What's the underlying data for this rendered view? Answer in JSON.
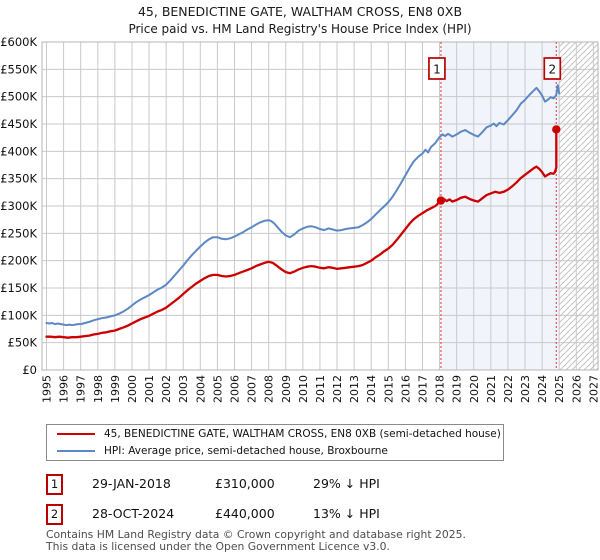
{
  "header": {
    "line1": "45, BENEDICTINE GATE, WALTHAM CROSS, EN8 0XB",
    "line2": "Price paid vs. HM Land Registry's House Price Index (HPI)"
  },
  "legend": {
    "items": [
      {
        "label": "45, BENEDICTINE GATE, WALTHAM CROSS, EN8 0XB (semi-detached house)",
        "color": "#cc0000"
      },
      {
        "label": "HPI: Average price, semi-detached house, Broxbourne",
        "color": "#5c88c5"
      }
    ]
  },
  "annotations": [
    {
      "num": "1",
      "date": "29-JAN-2018",
      "price": "£310,000",
      "hpi": "29% ↓ HPI"
    },
    {
      "num": "2",
      "date": "28-OCT-2024",
      "price": "£440,000",
      "hpi": "13% ↓ HPI"
    }
  ],
  "footer": {
    "line1": "Contains HM Land Registry data © Crown copyright and database right 2025.",
    "line2": "This data is licensed under the Open Government Licence v3.0."
  },
  "chart_data": {
    "type": "line",
    "title": "45, BENEDICTINE GATE, WALTHAM CROSS, EN8 0XB — Price paid vs. HPI",
    "xlabel": "",
    "ylabel": "",
    "ylim": [
      0,
      600
    ],
    "xlim": [
      1994.7,
      2027.3
    ],
    "grid": true,
    "legend_position": "bottom",
    "x_ticks": [
      1995,
      1996,
      1997,
      1998,
      1999,
      2000,
      2001,
      2002,
      2003,
      2004,
      2005,
      2006,
      2007,
      2008,
      2009,
      2010,
      2011,
      2012,
      2013,
      2014,
      2015,
      2016,
      2017,
      2018,
      2019,
      2020,
      2021,
      2022,
      2023,
      2024,
      2025,
      2026,
      2027
    ],
    "y_ticks": [
      {
        "label": "£0",
        "value": 0
      },
      {
        "label": "£50K",
        "value": 50
      },
      {
        "label": "£100K",
        "value": 100
      },
      {
        "label": "£150K",
        "value": 150
      },
      {
        "label": "£200K",
        "value": 200
      },
      {
        "label": "£250K",
        "value": 250
      },
      {
        "label": "£300K",
        "value": 300
      },
      {
        "label": "£350K",
        "value": 350
      },
      {
        "label": "£400K",
        "value": 400
      },
      {
        "label": "£450K",
        "value": 450
      },
      {
        "label": "£500K",
        "value": 500
      },
      {
        "label": "£550K",
        "value": 550
      },
      {
        "label": "£600K",
        "value": 600
      }
    ],
    "units": "GBP thousands",
    "shade": {
      "from": 2018.08,
      "to": 2025.0,
      "color": "#f2f4fb"
    },
    "hatch": {
      "from": 2025.0,
      "to": 2027.3
    },
    "colors": {
      "grid": "#c9c9c9",
      "border": "#b5b5b5",
      "dashed": "#e05555",
      "hatch_line": "#c4c4c4",
      "marker_box_border": "#bb0000",
      "price_line": "#cc0000",
      "hpi_line": "#5c88c5"
    },
    "sales": [
      {
        "n": "1",
        "x": 2018.08,
        "y": 310,
        "date": "29-JAN-2018",
        "price_gbp": 310000,
        "pct_vs_hpi": "29% below HPI"
      },
      {
        "n": "2",
        "x": 2024.83,
        "y": 440,
        "date": "28-OCT-2024",
        "price_gbp": 440000,
        "pct_vs_hpi": "13% below HPI"
      }
    ],
    "series": [
      {
        "name": "45, BENEDICTINE GATE, WALTHAM CROSS, EN8 0XB (semi-detached house)",
        "color": "#cc0000",
        "width": 2.3,
        "points": [
          [
            1995.0,
            61
          ],
          [
            1995.25,
            61
          ],
          [
            1995.5,
            60
          ],
          [
            1995.75,
            61
          ],
          [
            1996.0,
            60
          ],
          [
            1996.25,
            59
          ],
          [
            1996.5,
            60
          ],
          [
            1996.75,
            60
          ],
          [
            1997.0,
            61
          ],
          [
            1997.25,
            62
          ],
          [
            1997.5,
            63
          ],
          [
            1997.75,
            65
          ],
          [
            1998.0,
            66
          ],
          [
            1998.25,
            68
          ],
          [
            1998.5,
            69
          ],
          [
            1998.75,
            71
          ],
          [
            1999.0,
            72
          ],
          [
            1999.25,
            75
          ],
          [
            1999.5,
            78
          ],
          [
            1999.75,
            81
          ],
          [
            2000.0,
            85
          ],
          [
            2000.25,
            89
          ],
          [
            2000.5,
            93
          ],
          [
            2000.75,
            96
          ],
          [
            2001.0,
            99
          ],
          [
            2001.25,
            103
          ],
          [
            2001.5,
            107
          ],
          [
            2001.75,
            110
          ],
          [
            2002.0,
            114
          ],
          [
            2002.25,
            120
          ],
          [
            2002.5,
            126
          ],
          [
            2002.75,
            132
          ],
          [
            2003.0,
            139
          ],
          [
            2003.25,
            146
          ],
          [
            2003.5,
            152
          ],
          [
            2003.75,
            158
          ],
          [
            2004.0,
            163
          ],
          [
            2004.25,
            168
          ],
          [
            2004.5,
            172
          ],
          [
            2004.75,
            174
          ],
          [
            2005.0,
            174
          ],
          [
            2005.25,
            172
          ],
          [
            2005.5,
            171
          ],
          [
            2005.75,
            172
          ],
          [
            2006.0,
            174
          ],
          [
            2006.25,
            177
          ],
          [
            2006.5,
            180
          ],
          [
            2006.75,
            183
          ],
          [
            2007.0,
            186
          ],
          [
            2007.25,
            190
          ],
          [
            2007.5,
            193
          ],
          [
            2007.75,
            196
          ],
          [
            2008.0,
            198
          ],
          [
            2008.25,
            196
          ],
          [
            2008.5,
            190
          ],
          [
            2008.75,
            184
          ],
          [
            2009.0,
            179
          ],
          [
            2009.25,
            177
          ],
          [
            2009.5,
            180
          ],
          [
            2009.75,
            184
          ],
          [
            2010.0,
            187
          ],
          [
            2010.25,
            189
          ],
          [
            2010.5,
            190
          ],
          [
            2010.75,
            189
          ],
          [
            2011.0,
            187
          ],
          [
            2011.25,
            186
          ],
          [
            2011.5,
            188
          ],
          [
            2011.75,
            187
          ],
          [
            2012.0,
            185
          ],
          [
            2012.25,
            186
          ],
          [
            2012.5,
            187
          ],
          [
            2012.75,
            188
          ],
          [
            2013.0,
            189
          ],
          [
            2013.25,
            190
          ],
          [
            2013.5,
            192
          ],
          [
            2013.75,
            196
          ],
          [
            2014.0,
            200
          ],
          [
            2014.25,
            206
          ],
          [
            2014.5,
            211
          ],
          [
            2014.75,
            217
          ],
          [
            2015.0,
            222
          ],
          [
            2015.25,
            229
          ],
          [
            2015.5,
            238
          ],
          [
            2015.75,
            248
          ],
          [
            2016.0,
            258
          ],
          [
            2016.25,
            268
          ],
          [
            2016.5,
            276
          ],
          [
            2016.75,
            282
          ],
          [
            2017.0,
            287
          ],
          [
            2017.25,
            292
          ],
          [
            2017.5,
            296
          ],
          [
            2017.75,
            300
          ],
          [
            2017.83,
            302
          ],
          [
            2017.94,
            306
          ],
          [
            2018.08,
            310
          ],
          [
            2018.25,
            313
          ],
          [
            2018.42,
            309
          ],
          [
            2018.58,
            312
          ],
          [
            2018.75,
            308
          ],
          [
            2019.0,
            311
          ],
          [
            2019.25,
            315
          ],
          [
            2019.5,
            317
          ],
          [
            2019.75,
            313
          ],
          [
            2020.0,
            310
          ],
          [
            2020.25,
            308
          ],
          [
            2020.5,
            314
          ],
          [
            2020.75,
            320
          ],
          [
            2021.0,
            323
          ],
          [
            2021.25,
            326
          ],
          [
            2021.5,
            324
          ],
          [
            2021.75,
            326
          ],
          [
            2022.0,
            330
          ],
          [
            2022.25,
            336
          ],
          [
            2022.5,
            343
          ],
          [
            2022.75,
            351
          ],
          [
            2023.0,
            357
          ],
          [
            2023.25,
            363
          ],
          [
            2023.5,
            369
          ],
          [
            2023.67,
            372
          ],
          [
            2023.83,
            368
          ],
          [
            2024.0,
            362
          ],
          [
            2024.17,
            354
          ],
          [
            2024.33,
            357
          ],
          [
            2024.5,
            360
          ],
          [
            2024.67,
            359
          ],
          [
            2024.75,
            362
          ],
          [
            2024.83,
            370
          ],
          [
            2024.83,
            440
          ]
        ]
      },
      {
        "name": "HPI: Average price, semi-detached house, Broxbourne",
        "color": "#5c88c5",
        "width": 2,
        "points": [
          [
            1995.0,
            86
          ],
          [
            1995.17,
            85
          ],
          [
            1995.33,
            86
          ],
          [
            1995.5,
            84
          ],
          [
            1995.67,
            85
          ],
          [
            1995.83,
            84
          ],
          [
            1996.0,
            83
          ],
          [
            1996.17,
            82
          ],
          [
            1996.33,
            83
          ],
          [
            1996.5,
            82
          ],
          [
            1996.67,
            83
          ],
          [
            1996.83,
            84
          ],
          [
            1997.0,
            84
          ],
          [
            1997.25,
            86
          ],
          [
            1997.5,
            88
          ],
          [
            1997.75,
            91
          ],
          [
            1998.0,
            93
          ],
          [
            1998.25,
            95
          ],
          [
            1998.5,
            96
          ],
          [
            1998.75,
            98
          ],
          [
            1999.0,
            100
          ],
          [
            1999.25,
            103
          ],
          [
            1999.5,
            107
          ],
          [
            1999.75,
            112
          ],
          [
            2000.0,
            118
          ],
          [
            2000.25,
            124
          ],
          [
            2000.5,
            129
          ],
          [
            2000.75,
            133
          ],
          [
            2001.0,
            137
          ],
          [
            2001.25,
            142
          ],
          [
            2001.5,
            147
          ],
          [
            2001.75,
            151
          ],
          [
            2002.0,
            156
          ],
          [
            2002.25,
            164
          ],
          [
            2002.5,
            173
          ],
          [
            2002.75,
            182
          ],
          [
            2003.0,
            191
          ],
          [
            2003.25,
            201
          ],
          [
            2003.5,
            210
          ],
          [
            2003.75,
            218
          ],
          [
            2004.0,
            226
          ],
          [
            2004.25,
            233
          ],
          [
            2004.5,
            239
          ],
          [
            2004.75,
            243
          ],
          [
            2005.0,
            243
          ],
          [
            2005.25,
            240
          ],
          [
            2005.5,
            239
          ],
          [
            2005.75,
            241
          ],
          [
            2006.0,
            244
          ],
          [
            2006.25,
            248
          ],
          [
            2006.5,
            252
          ],
          [
            2006.75,
            257
          ],
          [
            2007.0,
            261
          ],
          [
            2007.25,
            266
          ],
          [
            2007.5,
            270
          ],
          [
            2007.75,
            273
          ],
          [
            2008.0,
            274
          ],
          [
            2008.17,
            272
          ],
          [
            2008.33,
            268
          ],
          [
            2008.5,
            262
          ],
          [
            2008.75,
            253
          ],
          [
            2009.0,
            246
          ],
          [
            2009.25,
            243
          ],
          [
            2009.5,
            248
          ],
          [
            2009.75,
            255
          ],
          [
            2010.0,
            259
          ],
          [
            2010.25,
            262
          ],
          [
            2010.5,
            263
          ],
          [
            2010.75,
            261
          ],
          [
            2011.0,
            258
          ],
          [
            2011.25,
            256
          ],
          [
            2011.5,
            259
          ],
          [
            2011.75,
            257
          ],
          [
            2012.0,
            255
          ],
          [
            2012.25,
            256
          ],
          [
            2012.5,
            258
          ],
          [
            2012.75,
            259
          ],
          [
            2013.0,
            260
          ],
          [
            2013.25,
            261
          ],
          [
            2013.5,
            265
          ],
          [
            2013.75,
            270
          ],
          [
            2014.0,
            276
          ],
          [
            2014.25,
            284
          ],
          [
            2014.5,
            292
          ],
          [
            2014.75,
            299
          ],
          [
            2015.0,
            307
          ],
          [
            2015.25,
            317
          ],
          [
            2015.5,
            329
          ],
          [
            2015.75,
            342
          ],
          [
            2016.0,
            356
          ],
          [
            2016.25,
            370
          ],
          [
            2016.5,
            382
          ],
          [
            2016.75,
            390
          ],
          [
            2017.0,
            396
          ],
          [
            2017.17,
            403
          ],
          [
            2017.33,
            398
          ],
          [
            2017.5,
            408
          ],
          [
            2017.75,
            415
          ],
          [
            2018.0,
            426
          ],
          [
            2018.17,
            431
          ],
          [
            2018.33,
            428
          ],
          [
            2018.5,
            432
          ],
          [
            2018.75,
            427
          ],
          [
            2019.0,
            431
          ],
          [
            2019.25,
            436
          ],
          [
            2019.5,
            439
          ],
          [
            2019.75,
            434
          ],
          [
            2020.0,
            430
          ],
          [
            2020.25,
            427
          ],
          [
            2020.5,
            435
          ],
          [
            2020.75,
            444
          ],
          [
            2021.0,
            447
          ],
          [
            2021.17,
            451
          ],
          [
            2021.33,
            446
          ],
          [
            2021.5,
            452
          ],
          [
            2021.75,
            449
          ],
          [
            2022.0,
            457
          ],
          [
            2022.25,
            466
          ],
          [
            2022.5,
            475
          ],
          [
            2022.75,
            487
          ],
          [
            2023.0,
            494
          ],
          [
            2023.25,
            503
          ],
          [
            2023.5,
            511
          ],
          [
            2023.67,
            516
          ],
          [
            2023.83,
            510
          ],
          [
            2024.0,
            502
          ],
          [
            2024.17,
            491
          ],
          [
            2024.33,
            494
          ],
          [
            2024.5,
            499
          ],
          [
            2024.67,
            497
          ],
          [
            2024.83,
            503
          ],
          [
            2024.92,
            521
          ],
          [
            2025.0,
            506
          ]
        ]
      }
    ]
  }
}
